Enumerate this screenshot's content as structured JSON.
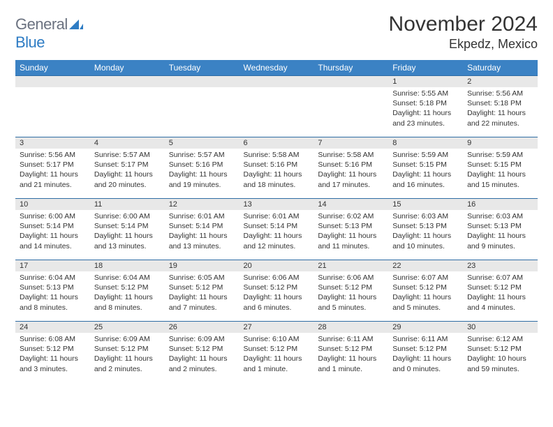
{
  "brand": {
    "part1": "General",
    "part2": "Blue"
  },
  "title": "November 2024",
  "location": "Ekpedz, Mexico",
  "colors": {
    "header_bg": "#3b82c4",
    "border": "#2e6da4",
    "daynum_bg": "#e8e8e8",
    "text": "#333333",
    "logo_gray": "#6b7280",
    "logo_blue": "#2e7cc4",
    "page_bg": "#ffffff"
  },
  "typography": {
    "title_fontsize": 30,
    "location_fontsize": 18,
    "dayhead_fontsize": 12,
    "daynum_fontsize": 11,
    "body_fontsize": 10.5
  },
  "weekdays": [
    "Sunday",
    "Monday",
    "Tuesday",
    "Wednesday",
    "Thursday",
    "Friday",
    "Saturday"
  ],
  "weeks": [
    [
      null,
      null,
      null,
      null,
      null,
      {
        "n": "1",
        "sr": "5:55 AM",
        "ss": "5:18 PM",
        "dl": "11 hours and 23 minutes."
      },
      {
        "n": "2",
        "sr": "5:56 AM",
        "ss": "5:18 PM",
        "dl": "11 hours and 22 minutes."
      }
    ],
    [
      {
        "n": "3",
        "sr": "5:56 AM",
        "ss": "5:17 PM",
        "dl": "11 hours and 21 minutes."
      },
      {
        "n": "4",
        "sr": "5:57 AM",
        "ss": "5:17 PM",
        "dl": "11 hours and 20 minutes."
      },
      {
        "n": "5",
        "sr": "5:57 AM",
        "ss": "5:16 PM",
        "dl": "11 hours and 19 minutes."
      },
      {
        "n": "6",
        "sr": "5:58 AM",
        "ss": "5:16 PM",
        "dl": "11 hours and 18 minutes."
      },
      {
        "n": "7",
        "sr": "5:58 AM",
        "ss": "5:16 PM",
        "dl": "11 hours and 17 minutes."
      },
      {
        "n": "8",
        "sr": "5:59 AM",
        "ss": "5:15 PM",
        "dl": "11 hours and 16 minutes."
      },
      {
        "n": "9",
        "sr": "5:59 AM",
        "ss": "5:15 PM",
        "dl": "11 hours and 15 minutes."
      }
    ],
    [
      {
        "n": "10",
        "sr": "6:00 AM",
        "ss": "5:14 PM",
        "dl": "11 hours and 14 minutes."
      },
      {
        "n": "11",
        "sr": "6:00 AM",
        "ss": "5:14 PM",
        "dl": "11 hours and 13 minutes."
      },
      {
        "n": "12",
        "sr": "6:01 AM",
        "ss": "5:14 PM",
        "dl": "11 hours and 13 minutes."
      },
      {
        "n": "13",
        "sr": "6:01 AM",
        "ss": "5:14 PM",
        "dl": "11 hours and 12 minutes."
      },
      {
        "n": "14",
        "sr": "6:02 AM",
        "ss": "5:13 PM",
        "dl": "11 hours and 11 minutes."
      },
      {
        "n": "15",
        "sr": "6:03 AM",
        "ss": "5:13 PM",
        "dl": "11 hours and 10 minutes."
      },
      {
        "n": "16",
        "sr": "6:03 AM",
        "ss": "5:13 PM",
        "dl": "11 hours and 9 minutes."
      }
    ],
    [
      {
        "n": "17",
        "sr": "6:04 AM",
        "ss": "5:13 PM",
        "dl": "11 hours and 8 minutes."
      },
      {
        "n": "18",
        "sr": "6:04 AM",
        "ss": "5:12 PM",
        "dl": "11 hours and 8 minutes."
      },
      {
        "n": "19",
        "sr": "6:05 AM",
        "ss": "5:12 PM",
        "dl": "11 hours and 7 minutes."
      },
      {
        "n": "20",
        "sr": "6:06 AM",
        "ss": "5:12 PM",
        "dl": "11 hours and 6 minutes."
      },
      {
        "n": "21",
        "sr": "6:06 AM",
        "ss": "5:12 PM",
        "dl": "11 hours and 5 minutes."
      },
      {
        "n": "22",
        "sr": "6:07 AM",
        "ss": "5:12 PM",
        "dl": "11 hours and 5 minutes."
      },
      {
        "n": "23",
        "sr": "6:07 AM",
        "ss": "5:12 PM",
        "dl": "11 hours and 4 minutes."
      }
    ],
    [
      {
        "n": "24",
        "sr": "6:08 AM",
        "ss": "5:12 PM",
        "dl": "11 hours and 3 minutes."
      },
      {
        "n": "25",
        "sr": "6:09 AM",
        "ss": "5:12 PM",
        "dl": "11 hours and 2 minutes."
      },
      {
        "n": "26",
        "sr": "6:09 AM",
        "ss": "5:12 PM",
        "dl": "11 hours and 2 minutes."
      },
      {
        "n": "27",
        "sr": "6:10 AM",
        "ss": "5:12 PM",
        "dl": "11 hours and 1 minute."
      },
      {
        "n": "28",
        "sr": "6:11 AM",
        "ss": "5:12 PM",
        "dl": "11 hours and 1 minute."
      },
      {
        "n": "29",
        "sr": "6:11 AM",
        "ss": "5:12 PM",
        "dl": "11 hours and 0 minutes."
      },
      {
        "n": "30",
        "sr": "6:12 AM",
        "ss": "5:12 PM",
        "dl": "10 hours and 59 minutes."
      }
    ]
  ],
  "labels": {
    "sunrise": "Sunrise:",
    "sunset": "Sunset:",
    "daylight": "Daylight:"
  }
}
